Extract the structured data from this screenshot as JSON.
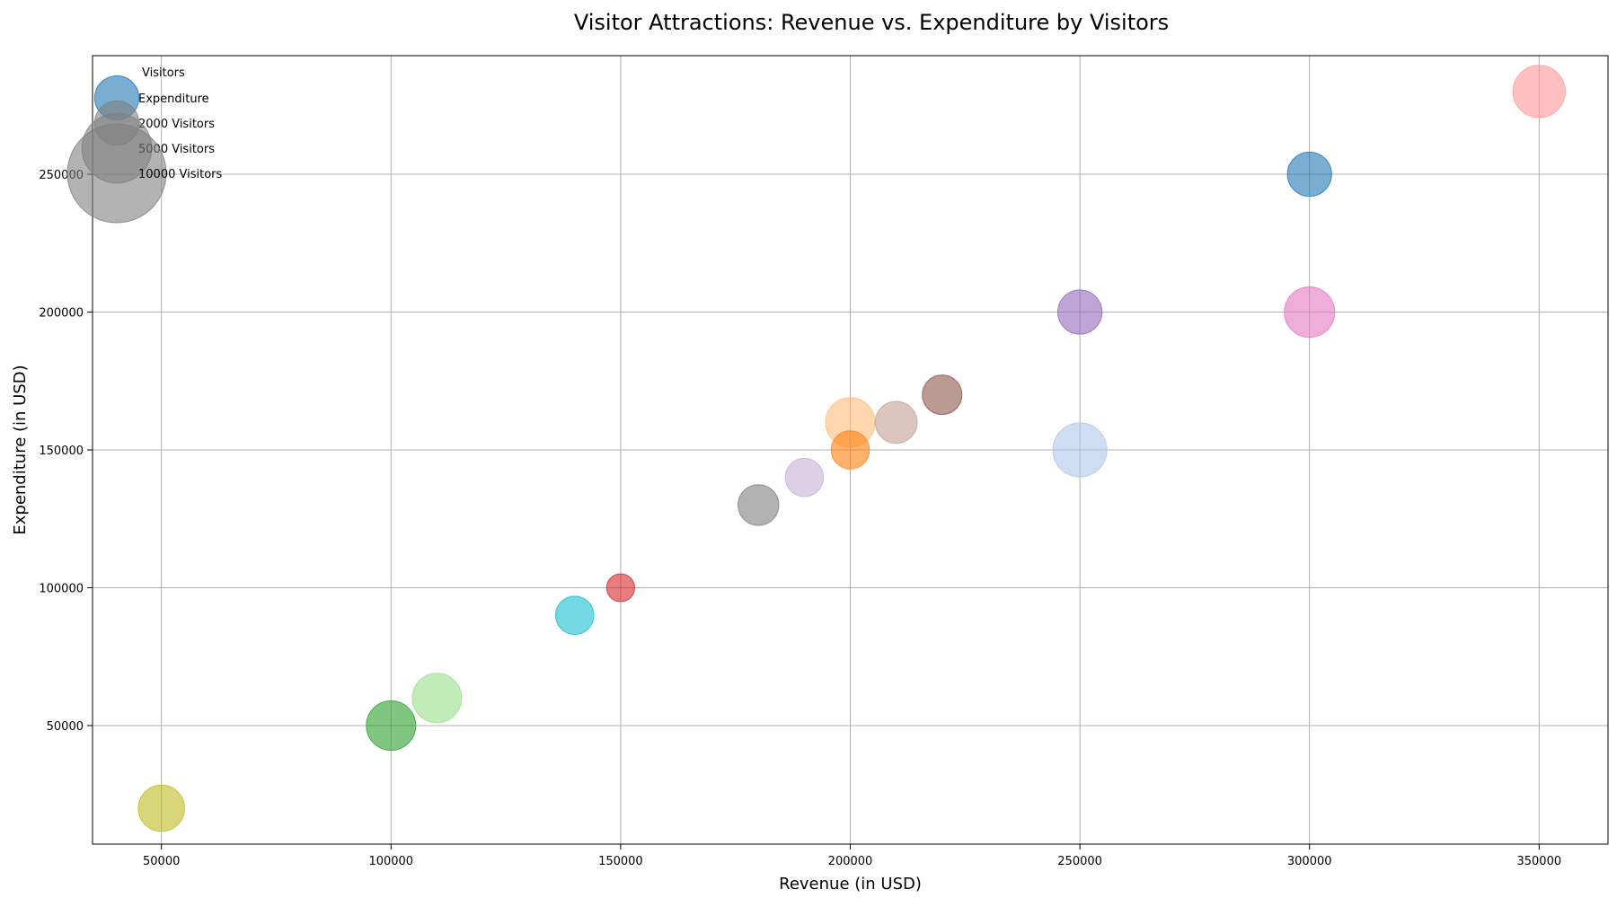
{
  "chart_data": {
    "type": "scatter",
    "title": "Visitor Attractions: Revenue vs. Expenditure by Visitors",
    "xlabel": "Revenue (in USD)",
    "ylabel": "Expenditure (in USD)",
    "xlim": [
      35000,
      365000
    ],
    "ylim": [
      7000,
      293000
    ],
    "xticks": [
      50000,
      100000,
      150000,
      200000,
      250000,
      300000,
      350000
    ],
    "yticks": [
      50000,
      100000,
      150000,
      200000,
      250000
    ],
    "grid": true,
    "legend": {
      "placement": "top-left",
      "title": "Visitors",
      "entries": [
        {
          "label": "Expenditure",
          "visitors": 2000,
          "color": "#1f77b4"
        },
        {
          "label": "2000 Visitors",
          "visitors": 2000,
          "color": "#808080"
        },
        {
          "label": "5000 Visitors",
          "visitors": 5000,
          "color": "#808080"
        },
        {
          "label": "10000 Visitors",
          "visitors": 10000,
          "color": "#808080"
        }
      ]
    },
    "points": [
      {
        "x": 300000,
        "y": 250000,
        "visitors": 2000,
        "color": "#1f77b4"
      },
      {
        "x": 200000,
        "y": 160000,
        "visitors": 2500,
        "color": "#ffbb78"
      },
      {
        "x": 200000,
        "y": 150000,
        "visitors": 1500,
        "color": "#ff7f0e"
      },
      {
        "x": 250000,
        "y": 150000,
        "visitors": 3000,
        "color": "#aec7e8"
      },
      {
        "x": 100000,
        "y": 50000,
        "visitors": 2500,
        "color": "#2ca02c"
      },
      {
        "x": 110000,
        "y": 60000,
        "visitors": 2500,
        "color": "#98df8a"
      },
      {
        "x": 150000,
        "y": 100000,
        "visitors": 800,
        "color": "#d62728"
      },
      {
        "x": 350000,
        "y": 280000,
        "visitors": 2800,
        "color": "#ff9896"
      },
      {
        "x": 250000,
        "y": 200000,
        "visitors": 2000,
        "color": "#9467bd"
      },
      {
        "x": 190000,
        "y": 140000,
        "visitors": 1500,
        "color": "#c5b0d5"
      },
      {
        "x": 220000,
        "y": 170000,
        "visitors": 1600,
        "color": "#8c564b"
      },
      {
        "x": 210000,
        "y": 160000,
        "visitors": 1800,
        "color": "#c49c94"
      },
      {
        "x": 300000,
        "y": 200000,
        "visitors": 2600,
        "color": "#e377c2"
      },
      {
        "x": 180000,
        "y": 130000,
        "visitors": 1700,
        "color": "#7f7f7f"
      },
      {
        "x": 50000,
        "y": 20000,
        "visitors": 2200,
        "color": "#bcbd22"
      },
      {
        "x": 140000,
        "y": 90000,
        "visitors": 1500,
        "color": "#17becf"
      }
    ]
  }
}
